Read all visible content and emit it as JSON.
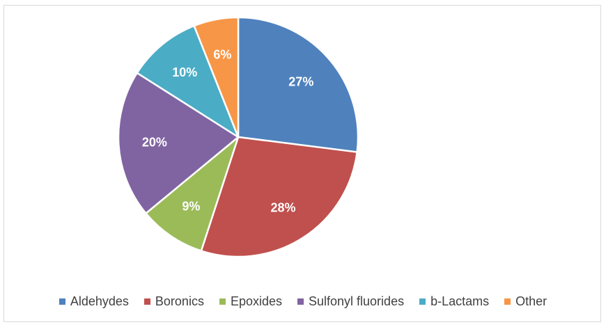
{
  "chart_data": {
    "type": "pie",
    "title": "",
    "categories": [
      "Aldehydes",
      "Boronics",
      "Epoxides",
      "Sulfonyl fluorides",
      "b-Lactams",
      "Other"
    ],
    "values": [
      27,
      28,
      9,
      20,
      10,
      6
    ],
    "labels": [
      "27%",
      "28%",
      "9%",
      "20%",
      "10%",
      "6%"
    ],
    "colors": [
      "#4f81bd",
      "#c0504d",
      "#9bbb59",
      "#8064a2",
      "#4bacc6",
      "#f79646"
    ],
    "legend_position": "bottom",
    "start_angle": "top, clockwise"
  }
}
